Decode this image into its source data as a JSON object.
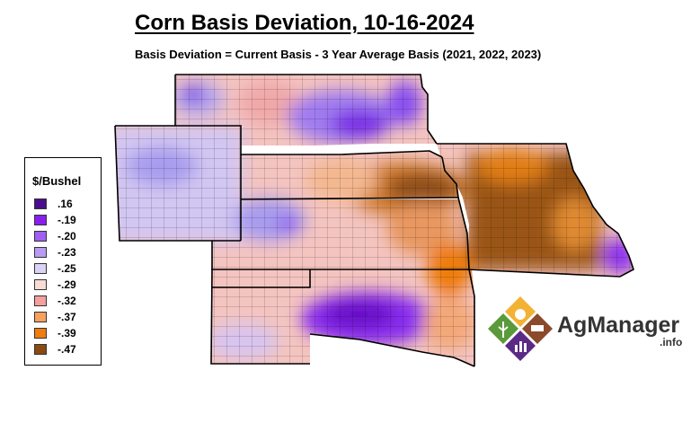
{
  "title": "Corn Basis Deviation, 10-16-2024",
  "subtitle": "Basis Deviation = Current Basis - 3 Year Average Basis (2021, 2022, 2023)",
  "legend": {
    "title": "$/Bushel",
    "items": [
      {
        "label": ".16",
        "color": "#4b0d8c"
      },
      {
        "label": "-.19",
        "color": "#8a1ef0"
      },
      {
        "label": "-.20",
        "color": "#a05ef5"
      },
      {
        "label": "-.23",
        "color": "#b89cf3"
      },
      {
        "label": "-.25",
        "color": "#dcd2f5"
      },
      {
        "label": "-.29",
        "color": "#f7dcd2"
      },
      {
        "label": "-.32",
        "color": "#f4a0a0"
      },
      {
        "label": "-.37",
        "color": "#f7a15f"
      },
      {
        "label": "-.39",
        "color": "#ef7d10"
      },
      {
        "label": "-.47",
        "color": "#8a4a10"
      }
    ]
  },
  "logo": {
    "name": "AgManager",
    "suffix": ".info",
    "colors": {
      "yellow": "#f2b233",
      "green": "#5a9a3a",
      "brown": "#8b4a2a",
      "purple": "#5b2a86"
    }
  }
}
